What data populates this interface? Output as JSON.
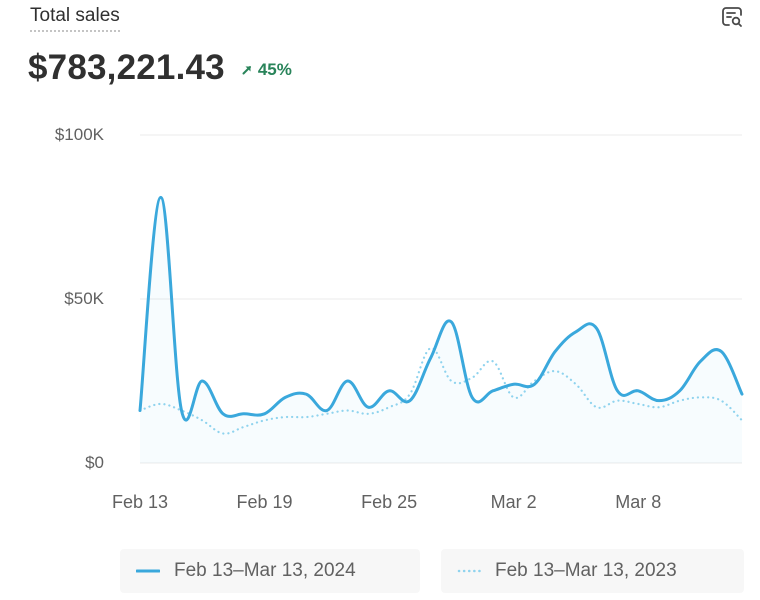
{
  "card": {
    "title": "Total sales",
    "total_value": "$783,221.43",
    "change_percent": "45%",
    "change_direction": "up",
    "explore_icon": "chart-explore-icon",
    "change_icon": "arrow-up-right-icon"
  },
  "colors": {
    "current": "#3aa8dc",
    "previous": "#8fd3ee",
    "positive": "#29845a",
    "grid": "#ebebeb"
  },
  "chart_data": {
    "type": "line",
    "title": "Total sales",
    "xlabel": "",
    "ylabel": "",
    "ylim": [
      0,
      100000
    ],
    "y_ticks": [
      {
        "value": 0,
        "label": "$0"
      },
      {
        "value": 50000,
        "label": "$50K"
      },
      {
        "value": 100000,
        "label": "$100K"
      }
    ],
    "x_ticks": [
      {
        "index": 0,
        "label": "Feb 13"
      },
      {
        "index": 6,
        "label": "Feb 19"
      },
      {
        "index": 12,
        "label": "Feb 25"
      },
      {
        "index": 18,
        "label": "Mar 2"
      },
      {
        "index": 24,
        "label": "Mar 8"
      }
    ],
    "grid": true,
    "legend_placement": "bottom",
    "series": [
      {
        "name": "Feb 13–Mar 13, 2024",
        "style": "solid",
        "values": [
          16000,
          81000,
          16000,
          25000,
          15000,
          15000,
          15000,
          20000,
          21000,
          16000,
          25000,
          17000,
          22000,
          19000,
          32000,
          43000,
          20000,
          22000,
          24000,
          24000,
          34000,
          40000,
          41000,
          22000,
          22000,
          19000,
          22000,
          31000,
          34000,
          21000
        ]
      },
      {
        "name": "Feb 13–Mar 13, 2023",
        "style": "dotted",
        "values": [
          16000,
          18000,
          16000,
          13000,
          9000,
          11000,
          13000,
          14000,
          14000,
          15000,
          16000,
          15000,
          17000,
          21000,
          35000,
          25000,
          26000,
          31000,
          20000,
          25000,
          28000,
          24000,
          17000,
          19000,
          18000,
          17000,
          19000,
          20000,
          19000,
          13000
        ]
      }
    ]
  }
}
